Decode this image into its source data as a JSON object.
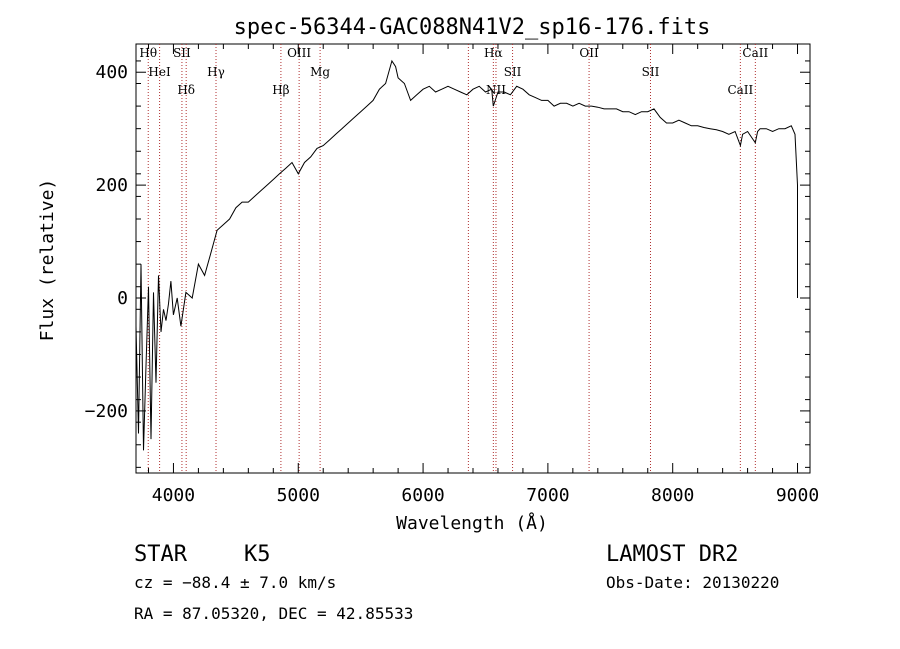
{
  "chart_data": {
    "type": "line",
    "title": "spec-56344-GAC088N41V2_sp16-176.fits",
    "xlabel": "Wavelength (Å)",
    "ylabel": "Flux (relative)",
    "xlim": [
      3700,
      9100
    ],
    "ylim": [
      -310,
      450
    ],
    "xticks": [
      4000,
      5000,
      6000,
      7000,
      8000,
      9000
    ],
    "yticks": [
      -200,
      0,
      200,
      400
    ],
    "series": [
      {
        "x": [
          3700,
          3720,
          3740,
          3760,
          3780,
          3800,
          3820,
          3840,
          3860,
          3880,
          3900,
          3920,
          3940,
          3960,
          3980,
          4000,
          4030,
          4060,
          4100,
          4150,
          4200,
          4250,
          4300,
          4350,
          4400,
          4450,
          4500,
          4550,
          4600,
          4650,
          4700,
          4750,
          4800,
          4850,
          4900,
          4950,
          5000,
          5050,
          5100,
          5150,
          5200,
          5250,
          5300,
          5350,
          5400,
          5450,
          5500,
          5550,
          5600,
          5650,
          5700,
          5750,
          5780,
          5800,
          5850,
          5900,
          5950,
          6000,
          6050,
          6100,
          6150,
          6200,
          6250,
          6300,
          6350,
          6400,
          6450,
          6500,
          6550,
          6563,
          6600,
          6650,
          6700,
          6750,
          6800,
          6850,
          6900,
          6950,
          7000,
          7050,
          7100,
          7150,
          7200,
          7250,
          7300,
          7350,
          7400,
          7450,
          7500,
          7550,
          7600,
          7650,
          7700,
          7750,
          7800,
          7850,
          7900,
          7950,
          8000,
          8050,
          8100,
          8150,
          8200,
          8250,
          8300,
          8350,
          8400,
          8450,
          8500,
          8542,
          8560,
          8600,
          8662,
          8680,
          8700,
          8750,
          8800,
          8850,
          8900,
          8950,
          8980,
          9000,
          9000
        ],
        "y": [
          -50,
          -240,
          60,
          -270,
          -120,
          20,
          -250,
          10,
          -150,
          40,
          -60,
          -20,
          -40,
          -10,
          30,
          -30,
          0,
          -50,
          10,
          0,
          60,
          40,
          80,
          120,
          130,
          140,
          160,
          170,
          170,
          180,
          190,
          200,
          210,
          220,
          230,
          240,
          220,
          240,
          250,
          265,
          270,
          280,
          290,
          300,
          310,
          320,
          330,
          340,
          350,
          370,
          380,
          420,
          410,
          390,
          380,
          350,
          360,
          370,
          375,
          365,
          370,
          375,
          370,
          365,
          360,
          370,
          375,
          365,
          370,
          340,
          365,
          365,
          360,
          375,
          370,
          360,
          355,
          350,
          350,
          340,
          345,
          345,
          340,
          345,
          340,
          340,
          338,
          335,
          335,
          335,
          330,
          330,
          325,
          330,
          330,
          335,
          320,
          310,
          310,
          315,
          310,
          305,
          305,
          302,
          300,
          298,
          295,
          290,
          295,
          270,
          290,
          295,
          275,
          295,
          300,
          300,
          295,
          300,
          300,
          305,
          290,
          200,
          0
        ]
      }
    ],
    "lines": [
      {
        "label": "Hθ",
        "x": 3798
      },
      {
        "label": "HeI",
        "x": 3889
      },
      {
        "label": "Hδ",
        "x": 4102
      },
      {
        "label": "SII",
        "x": 4068
      },
      {
        "label": "Hγ",
        "x": 4341
      },
      {
        "label": "Hβ",
        "x": 4861
      },
      {
        "label": "OIII",
        "x": 5007
      },
      {
        "label": "Mg",
        "x": 5175
      },
      {
        "label": "NII",
        "x": 6584
      },
      {
        "label": "Hα",
        "x": 6563
      },
      {
        "label": "SII",
        "x": 6717
      },
      {
        "label": "",
        "x": 6363
      },
      {
        "label": "OII",
        "x": 7330
      },
      {
        "label": "SII",
        "x": 7822
      },
      {
        "label": "CaII",
        "x": 8542
      },
      {
        "label": "CaII",
        "x": 8662
      }
    ]
  },
  "info": {
    "class": "STAR",
    "subclass": "K5",
    "survey": "LAMOST DR2",
    "cz": "cz = −88.4 ± 7.0 km/s",
    "obs_date": "Obs-Date: 20130220",
    "coords": "RA =  87.05320, DEC =  42.85533"
  }
}
